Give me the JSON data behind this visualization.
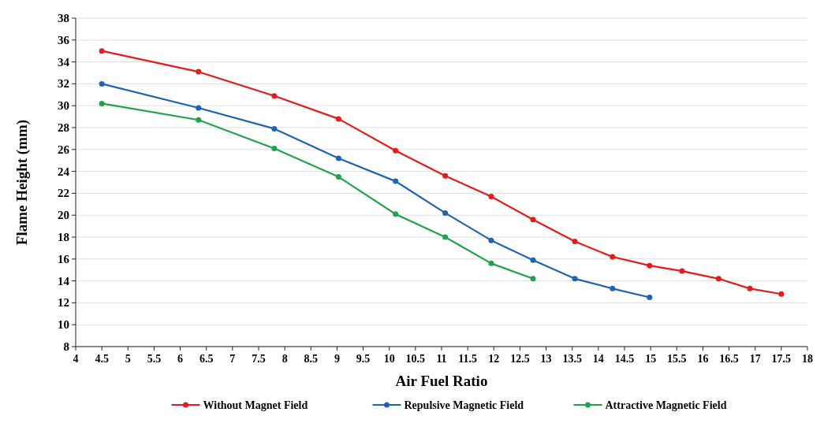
{
  "chart_data": {
    "type": "line",
    "xlabel": "Air Fuel Ratio",
    "ylabel": "Flame Height (mm)",
    "xlim": [
      4,
      18
    ],
    "xticks": [
      4,
      4.5,
      5,
      5.5,
      6,
      6.5,
      7,
      7.5,
      8,
      8.5,
      9,
      9.5,
      10,
      10.5,
      11,
      11.5,
      12,
      12.5,
      13,
      13.5,
      14,
      14.5,
      15,
      15.5,
      16,
      16.5,
      17,
      17.5,
      18
    ],
    "ylim": [
      8,
      38
    ],
    "yticks": [
      8,
      10,
      12,
      14,
      16,
      18,
      20,
      22,
      24,
      26,
      28,
      30,
      32,
      34,
      36,
      38
    ],
    "grid": "y",
    "legend": "bottom",
    "marker": "circle",
    "line_style": "solid",
    "series": [
      {
        "name": "Without Magnet Field",
        "color": "#e41a1c",
        "x": [
          4.5,
          6.35,
          7.8,
          9.03,
          10.12,
          11.07,
          11.95,
          12.75,
          13.55,
          14.27,
          14.98,
          15.6,
          16.3,
          16.9,
          17.5
        ],
        "values": [
          35,
          33.1,
          30.9,
          28.8,
          25.9,
          23.6,
          21.7,
          19.6,
          17.6,
          16.2,
          15.4,
          14.9,
          14.2,
          13.3,
          12.8
        ]
      },
      {
        "name": "Repulsive Magnetic Field",
        "color": "#1f63b5",
        "x": [
          4.5,
          6.35,
          7.8,
          9.03,
          10.12,
          11.07,
          11.95,
          12.75,
          13.55,
          14.27,
          14.98
        ],
        "values": [
          32,
          29.8,
          27.9,
          25.2,
          23.1,
          20.2,
          17.7,
          15.9,
          14.2,
          13.3,
          12.5
        ]
      },
      {
        "name": "Attractive Magnetic Field",
        "color": "#1fa34a",
        "x": [
          4.5,
          6.35,
          7.8,
          9.03,
          10.12,
          11.07,
          11.95,
          12.75
        ],
        "values": [
          30.2,
          28.7,
          26.1,
          23.5,
          20.1,
          18,
          15.6,
          14.2
        ]
      }
    ]
  }
}
